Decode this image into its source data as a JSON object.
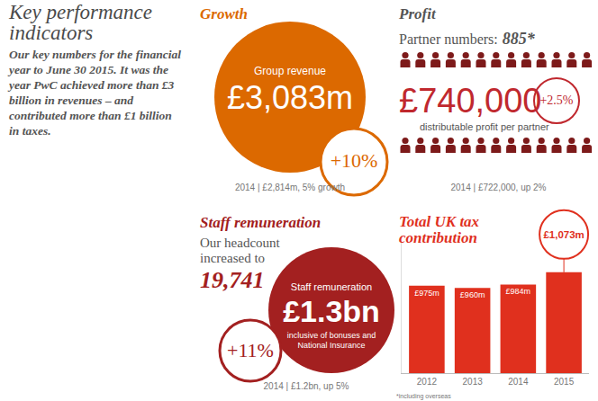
{
  "header": {
    "title": "Key performance indicators",
    "text": "Our key numbers for the financial year to June 30 2015. It was the year PwC achieved more than £3 billion in revenues – and contributed more than £1 billion in taxes."
  },
  "growth": {
    "title": "Growth",
    "label": "Group revenue",
    "value": "£3,083m",
    "change": "+10%",
    "comparison": "2014 | £2,814m, 5% growth"
  },
  "profit": {
    "title": "Profit",
    "partners_label": "Partner numbers:",
    "partners": "885*",
    "value": "£740,000",
    "value_label": "distributable profit per partner",
    "change": "+2.5%",
    "comparison": "2014 | £722,000, up 2%"
  },
  "staff": {
    "title": "Staff remuneration",
    "headcount_text": "Our headcount increased to",
    "headcount": "19,741",
    "label": "Staff remuneration",
    "value": "£1.3bn",
    "note": "inclusive of bonuses and National Insurance",
    "change": "+11%",
    "comparison": "2014 | £1.2bn, up 5%"
  },
  "chart_data": {
    "type": "bar",
    "title": "Total UK tax contribution",
    "categories": [
      "2012",
      "2013",
      "2014",
      "2015"
    ],
    "values": [
      975,
      960,
      984,
      1073
    ],
    "value_labels": [
      "£975m",
      "£960m",
      "£984m",
      "£1,073m"
    ],
    "data_labels": true,
    "color": "#e0301e",
    "ylim": [
      340,
      1340
    ],
    "yticks": [],
    "tick_labels": "x",
    "grid": false
  },
  "footnote": "*including overseas"
}
